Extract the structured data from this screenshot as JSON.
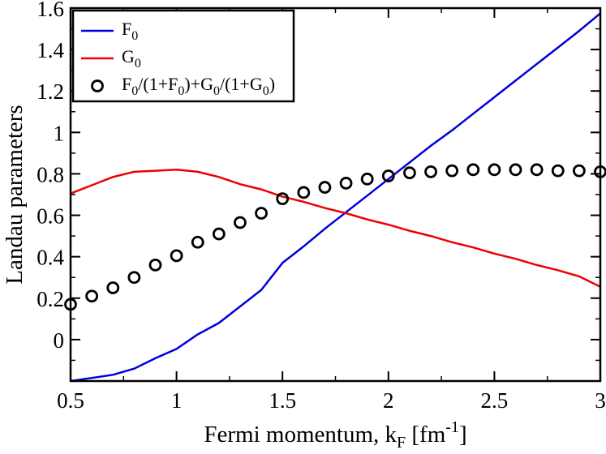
{
  "chart_data": {
    "type": "line",
    "xlabel": "Fermi momentum, k",
    "xlabel_sub": "F",
    "xlabel_unit_pre": " [fm",
    "xlabel_unit_sup": "-1",
    "xlabel_unit_post": "]",
    "ylabel": "Landau parameters",
    "xlim": [
      0.5,
      3.0
    ],
    "ylim": [
      -0.2,
      1.6
    ],
    "xticks": [
      0.5,
      1,
      1.5,
      2,
      2.5,
      3
    ],
    "xtick_labels": [
      "0.5",
      "1",
      "1.5",
      "2",
      "2.5",
      "3"
    ],
    "yticks": [
      0,
      0.2,
      0.4,
      0.6,
      0.8,
      1,
      1.2,
      1.4,
      1.6
    ],
    "ytick_labels": [
      "0",
      "0.2",
      "0.4",
      "0.6",
      "0.8",
      "1",
      "1.2",
      "1.4",
      "1.6"
    ],
    "grid": false,
    "legend_position": "top-left",
    "series": [
      {
        "name": "F0",
        "legend": [
          {
            "t": "F"
          },
          {
            "t": "0",
            "sub": true
          }
        ],
        "kind": "line",
        "color": "#0000dd",
        "x": [
          0.5,
          0.6,
          0.7,
          0.8,
          0.9,
          1.0,
          1.1,
          1.2,
          1.3,
          1.4,
          1.5,
          1.6,
          1.7,
          1.8,
          1.9,
          2.0,
          2.1,
          2.2,
          2.3,
          2.4,
          2.5,
          2.6,
          2.7,
          2.8,
          2.9,
          3.0
        ],
        "y": [
          -0.2,
          -0.185,
          -0.17,
          -0.14,
          -0.09,
          -0.045,
          0.025,
          0.08,
          0.16,
          0.24,
          0.37,
          0.45,
          0.535,
          0.615,
          0.695,
          0.775,
          0.855,
          0.935,
          1.01,
          1.09,
          1.17,
          1.25,
          1.33,
          1.41,
          1.49,
          1.575
        ]
      },
      {
        "name": "G0",
        "legend": [
          {
            "t": "G"
          },
          {
            "t": "0",
            "sub": true
          }
        ],
        "kind": "line",
        "color": "#ee0000",
        "x": [
          0.5,
          0.6,
          0.7,
          0.8,
          0.9,
          1.0,
          1.1,
          1.2,
          1.3,
          1.4,
          1.5,
          1.6,
          1.7,
          1.8,
          1.9,
          2.0,
          2.1,
          2.2,
          2.3,
          2.4,
          2.5,
          2.6,
          2.7,
          2.8,
          2.9,
          3.0
        ],
        "y": [
          0.705,
          0.745,
          0.785,
          0.81,
          0.815,
          0.82,
          0.81,
          0.785,
          0.75,
          0.725,
          0.69,
          0.665,
          0.635,
          0.61,
          0.58,
          0.555,
          0.525,
          0.5,
          0.47,
          0.445,
          0.415,
          0.39,
          0.36,
          0.335,
          0.305,
          0.255
        ]
      },
      {
        "name": "F0/(1+F0)+G0/(1+G0)",
        "legend": [
          {
            "t": "F"
          },
          {
            "t": "0",
            "sub": true
          },
          {
            "t": "/(1+F"
          },
          {
            "t": "0",
            "sub": true
          },
          {
            "t": ")+G"
          },
          {
            "t": "0",
            "sub": true
          },
          {
            "t": "/(1+G"
          },
          {
            "t": "0",
            "sub": true
          },
          {
            "t": ")"
          }
        ],
        "kind": "scatter",
        "color": "#000000",
        "x": [
          0.5,
          0.6,
          0.7,
          0.8,
          0.9,
          1.0,
          1.1,
          1.2,
          1.3,
          1.4,
          1.5,
          1.6,
          1.7,
          1.8,
          1.9,
          2.0,
          2.1,
          2.2,
          2.3,
          2.4,
          2.5,
          2.6,
          2.7,
          2.8,
          2.9,
          3.0
        ],
        "y": [
          0.17,
          0.21,
          0.25,
          0.3,
          0.36,
          0.405,
          0.47,
          0.51,
          0.565,
          0.61,
          0.68,
          0.71,
          0.735,
          0.755,
          0.775,
          0.79,
          0.805,
          0.81,
          0.815,
          0.82,
          0.82,
          0.82,
          0.82,
          0.815,
          0.815,
          0.81
        ]
      }
    ]
  }
}
